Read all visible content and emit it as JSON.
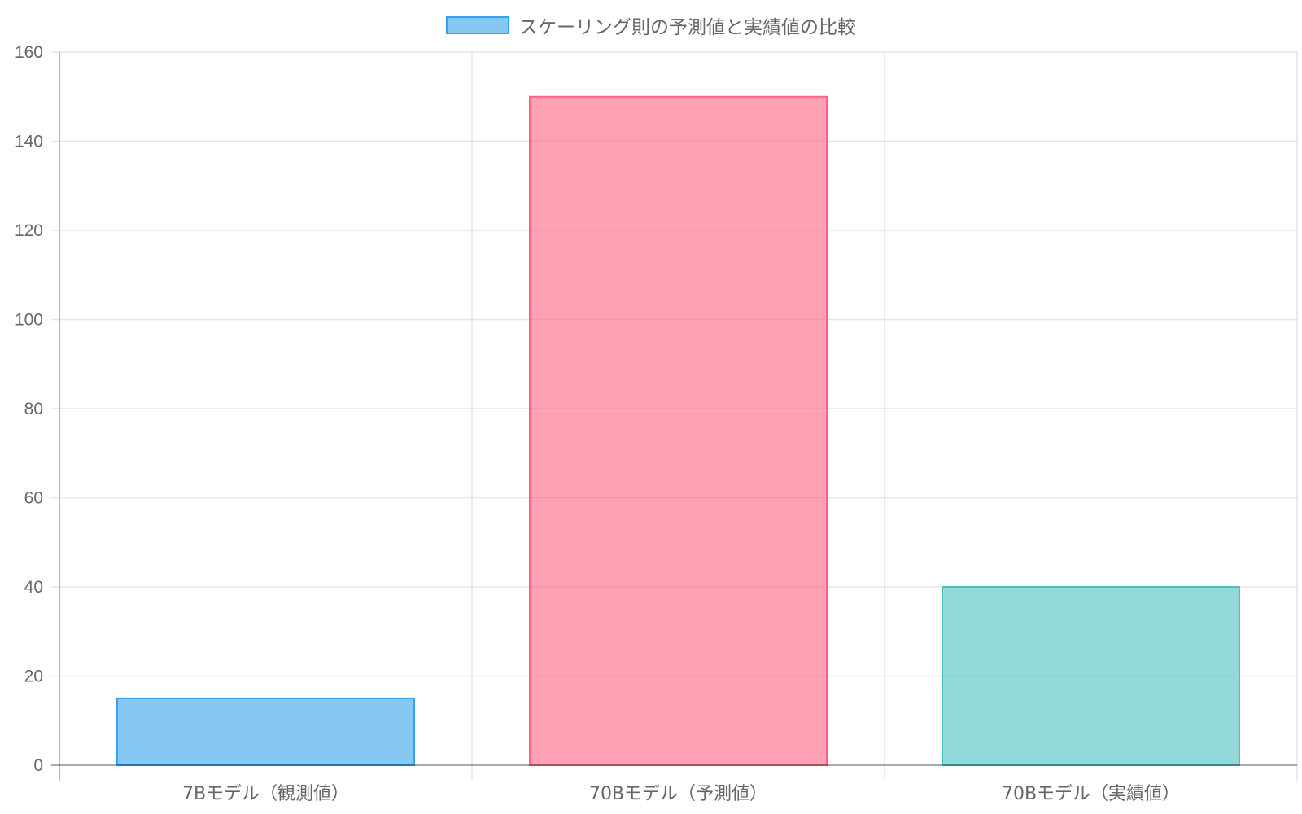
{
  "chart_data": {
    "type": "bar",
    "categories": [
      "7Bモデル（観測値）",
      "70Bモデル（予測値）",
      "70Bモデル（実績値）"
    ],
    "series": [
      {
        "name": "スケーリング則の予測値と実績値の比較",
        "values": [
          15,
          150,
          40
        ],
        "colors": [
          "#36a2eb",
          "#ff6384",
          "#4bc0c0"
        ]
      }
    ],
    "title": "",
    "xlabel": "",
    "ylabel": "",
    "ylim": [
      0,
      160
    ],
    "yticks": [
      "0",
      "20",
      "40",
      "60",
      "80",
      "100",
      "120",
      "140",
      "160"
    ],
    "grid": true,
    "legend_position": "top"
  }
}
